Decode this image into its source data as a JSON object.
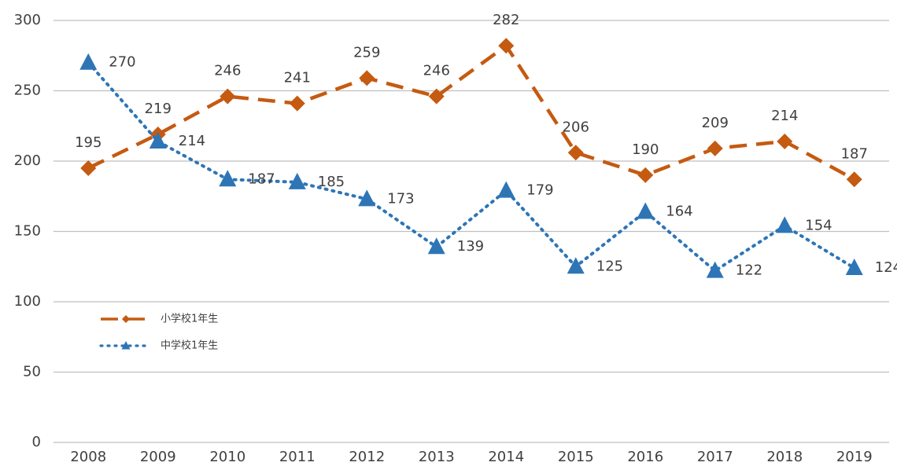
{
  "chart_data": {
    "type": "line",
    "categories": [
      "2008",
      "2009",
      "2010",
      "2011",
      "2012",
      "2013",
      "2014",
      "2015",
      "2016",
      "2017",
      "2018",
      "2019"
    ],
    "series": [
      {
        "name": "小学校1年生",
        "color": "#c55a11",
        "values": [
          195,
          219,
          246,
          241,
          259,
          246,
          282,
          206,
          190,
          209,
          214,
          187
        ]
      },
      {
        "name": "中学校1年生",
        "color": "#2e75b6",
        "values": [
          270,
          214,
          187,
          185,
          173,
          139,
          179,
          125,
          164,
          122,
          154,
          124
        ]
      }
    ],
    "ylim": [
      0,
      300
    ],
    "yticks": [
      0,
      50,
      100,
      150,
      200,
      250,
      300
    ],
    "grid": true,
    "legend": "left"
  }
}
